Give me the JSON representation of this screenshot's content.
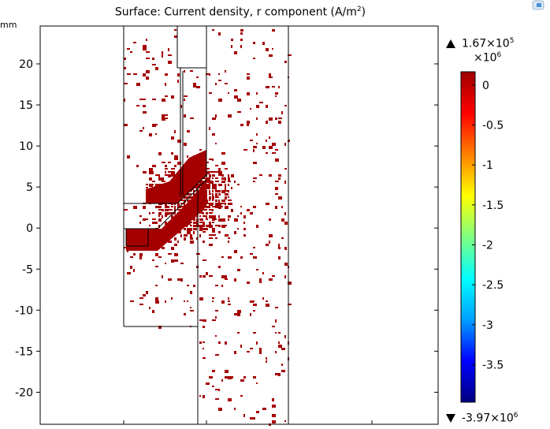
{
  "chart_data": {
    "type": "heatmap",
    "title_text": "Surface: Current density, r component (A/m",
    "title_sup": "2",
    "title_close": ")",
    "y_unit": "mm",
    "y_ticks": [
      20,
      15,
      10,
      5,
      0,
      -5,
      -10,
      -15,
      -20
    ],
    "ylim": [
      -23.5,
      24.5
    ],
    "colorbar": {
      "ticks": [
        "0",
        "-0.5",
        "-1",
        "-1.5",
        "-2",
        "-2.5",
        "-3",
        "-3.5"
      ],
      "tick_values": [
        0,
        -0.5,
        -1,
        -1.5,
        -2,
        -2.5,
        -3,
        -3.5
      ],
      "range": [
        -3.97,
        0.167
      ],
      "scale_label": "×10",
      "scale_exp": "6",
      "max_label": "1.67×10",
      "max_exp": "5",
      "min_label": "-3.97×10",
      "min_exp": "6",
      "colors": [
        "#000080",
        "#0000ff",
        "#00a0ff",
        "#00ffff",
        "#80ff80",
        "#ffff00",
        "#ff8000",
        "#ff0000",
        "#9f0000"
      ]
    },
    "field_color": "#a50000",
    "background_color": "#ffffff"
  }
}
